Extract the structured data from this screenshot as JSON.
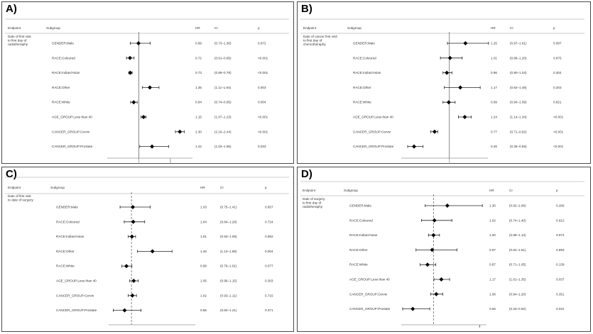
{
  "chart_data": [
    {
      "type": "forest",
      "panel_label": "A)",
      "headers": {
        "endpoint": "Endpoint",
        "subgroup": "Subgroup",
        "hr": "HR",
        "ci": "CI",
        "p": "p"
      },
      "endpoint_lines": [
        "Date of first visit",
        "to first day of",
        "radiotheraphy"
      ],
      "xlim": [
        0,
        2.7
      ],
      "ref_line": 1,
      "ticks": [
        "1",
        "2"
      ],
      "rows": [
        {
          "subgroup": "GENDER:Male",
          "hr": 0.99,
          "lo": 0.73,
          "hi": 1.36,
          "hr_text": "0.99",
          "ci_text": "(0.73–1.36)",
          "p_text": "0.972"
        },
        {
          "subgroup": "RACE:Coloured",
          "hr": 0.72,
          "lo": 0.61,
          "hi": 0.85,
          "hr_text": "0.72",
          "ci_text": "(0.61–0.85)",
          "p_text": "<0.001"
        },
        {
          "subgroup": "RACE:Indian/Asian",
          "hr": 0.73,
          "lo": 0.68,
          "hi": 0.79,
          "hr_text": "0.73",
          "ci_text": "(0.68–0.79)",
          "p_text": "<0.001"
        },
        {
          "subgroup": "RACE:Other",
          "hr": 1.35,
          "lo": 1.11,
          "hi": 1.64,
          "hr_text": "1.35",
          "ci_text": "(1.11–1.64)",
          "p_text": "0.003"
        },
        {
          "subgroup": "RACE:White",
          "hr": 0.84,
          "lo": 0.74,
          "hi": 0.95,
          "hr_text": "0.84",
          "ci_text": "(0.74–0.95)",
          "p_text": "0.004"
        },
        {
          "subgroup": "AGE_GROUP:Less than 40",
          "hr": 1.15,
          "lo": 1.07,
          "hi": 1.23,
          "hr_text": "1.15",
          "ci_text": "(1.07–1.23)",
          "p_text": "<0.001"
        },
        {
          "subgroup": "CANCER_GROUP:Cervix",
          "hr": 2.3,
          "lo": 2.16,
          "hi": 2.44,
          "hr_text": "2.30",
          "ci_text": "(2.16–2.44)",
          "p_text": "<0.001"
        },
        {
          "subgroup": "CANCER_GROUP:Prostate",
          "hr": 1.42,
          "lo": 1.03,
          "hi": 1.95,
          "hr_text": "1.42",
          "ci_text": "(1.03–1.95)",
          "p_text": "0.033"
        }
      ]
    },
    {
      "type": "forest",
      "panel_label": "B)",
      "headers": {
        "endpoint": "Endpoint",
        "subgroup": "Subgroup",
        "hr": "HR",
        "ci": "CI",
        "p": "p"
      },
      "endpoint_lines": [
        "Date of cancer first visit",
        "to first day of",
        "chemotheraphy"
      ],
      "xlim": [
        0.25,
        1.6
      ],
      "ref_line": 1,
      "ticks": [
        "1"
      ],
      "rows": [
        {
          "subgroup": "GENDER:Male",
          "hr": 1.25,
          "lo": 0.97,
          "hi": 1.61,
          "hr_text": "1.25",
          "ci_text": "(0.97–1.61)",
          "p_text": "0.087"
        },
        {
          "subgroup": "RACE:Coloured",
          "hr": 1.01,
          "lo": 0.86,
          "hi": 1.2,
          "hr_text": "1.01",
          "ci_text": "(0.86–1.20)",
          "p_text": "0.875"
        },
        {
          "subgroup": "RACE:Indian/Asian",
          "hr": 0.96,
          "lo": 0.9,
          "hi": 1.04,
          "hr_text": "0.96",
          "ci_text": "(0.90–1.04)",
          "p_text": "0.304"
        },
        {
          "subgroup": "RACE:Other",
          "hr": 1.17,
          "lo": 0.92,
          "hi": 1.48,
          "hr_text": "1.17",
          "ci_text": "(0.92–1.48)",
          "p_text": "0.203"
        },
        {
          "subgroup": "RACE:White",
          "hr": 0.99,
          "lo": 0.9,
          "hi": 1.09,
          "hr_text": "0.99",
          "ci_text": "(0.90–1.09)",
          "p_text": "0.821"
        },
        {
          "subgroup": "AGE_GROUP:Less than 40",
          "hr": 1.24,
          "lo": 1.14,
          "hi": 1.34,
          "hr_text": "1.24",
          "ci_text": "(1.14–1.34)",
          "p_text": "<0.001"
        },
        {
          "subgroup": "CANCER_GROUP:Cervix",
          "hr": 0.77,
          "lo": 0.71,
          "hi": 0.82,
          "hr_text": "0.77",
          "ci_text": "(0.71–0.82)",
          "p_text": "<0.001"
        },
        {
          "subgroup": "CANCER_GROUP:Prostate",
          "hr": 0.45,
          "lo": 0.35,
          "hi": 0.59,
          "hr_text": "0.45",
          "ci_text": "(0.35–0.59)",
          "p_text": "<0.001"
        }
      ]
    },
    {
      "type": "forest",
      "panel_label": "C)",
      "headers": {
        "endpoint": "Endpoint",
        "subgroup": "Subgroup",
        "hr": "HR",
        "ci": "CI",
        "p": "p"
      },
      "endpoint_lines": [
        "Date of first visit",
        "to date of surgery"
      ],
      "xlim": [
        0.5,
        2.4
      ],
      "ref_line": 1,
      "ticks": [],
      "rows": [
        {
          "subgroup": "GENDER:Male",
          "hr": 1.03,
          "lo": 0.75,
          "hi": 1.41,
          "hr_text": "1.03",
          "ci_text": "(0.75–1.41)",
          "p_text": "0.857"
        },
        {
          "subgroup": "RACE:Coloured",
          "hr": 1.04,
          "lo": 0.84,
          "hi": 1.29,
          "hr_text": "1.04",
          "ci_text": "(0.84–1.29)",
          "p_text": "0.724"
        },
        {
          "subgroup": "RACE:Indian/Asian",
          "hr": 1.01,
          "lo": 0.93,
          "hi": 1.09,
          "hr_text": "1.01",
          "ci_text": "(0.93–1.09)",
          "p_text": "0.892"
        },
        {
          "subgroup": "RACE:Other",
          "hr": 1.46,
          "lo": 1.13,
          "hi": 1.89,
          "hr_text": "1.46",
          "ci_text": "(1.13–1.89)",
          "p_text": "0.004"
        },
        {
          "subgroup": "RACE:White",
          "hr": 0.89,
          "lo": 0.79,
          "hi": 1.01,
          "hr_text": "0.89",
          "ci_text": "(0.79–1.01)",
          "p_text": "0.077"
        },
        {
          "subgroup": "AGE_GROUP:Less than 40",
          "hr": 1.05,
          "lo": 0.96,
          "hi": 1.15,
          "hr_text": "1.05",
          "ci_text": "(0.96–1.15)",
          "p_text": "0.303"
        },
        {
          "subgroup": "CANCER_GROUP:Cervix",
          "hr": 1.02,
          "lo": 0.93,
          "hi": 1.11,
          "hr_text": "1.02",
          "ci_text": "(0.93–1.11)",
          "p_text": "0.715"
        },
        {
          "subgroup": "CANCER_GROUP:Prostate",
          "hr": 0.85,
          "lo": 0.6,
          "hi": 1.21,
          "hr_text": "0.85",
          "ci_text": "(0.60–1.21)",
          "p_text": "0.371"
        }
      ]
    },
    {
      "type": "forest",
      "panel_label": "D)",
      "headers": {
        "endpoint": "Endpoint",
        "subgroup": "Subgroup",
        "hr": "HR",
        "ci": "CI",
        "p": "p"
      },
      "endpoint_lines": [
        "Date of surgery",
        "to first day of",
        "radiotheraphy"
      ],
      "xlim": [
        0.3,
        2.15
      ],
      "ref_line": 1,
      "ticks": [
        "2"
      ],
      "rows": [
        {
          "subgroup": "GENDER:Male",
          "hr": 1.3,
          "lo": 0.82,
          "hi": 2.06,
          "hr_text": "1.30",
          "ci_text": "(0.82–2.06)",
          "p_text": "0.266"
        },
        {
          "subgroup": "RACE:Coloured",
          "hr": 1.02,
          "lo": 0.74,
          "hi": 1.4,
          "hr_text": "1.02",
          "ci_text": "(0.74–1.40)",
          "p_text": "0.912"
        },
        {
          "subgroup": "RACE:Indian/Asian",
          "hr": 1.0,
          "lo": 0.89,
          "hi": 1.13,
          "hr_text": "1.00",
          "ci_text": "(0.89–1.13)",
          "p_text": "0.974"
        },
        {
          "subgroup": "RACE:Other",
          "hr": 0.97,
          "lo": 0.62,
          "hi": 1.51,
          "hr_text": "0.97",
          "ci_text": "(0.62–1.51)",
          "p_text": "0.893"
        },
        {
          "subgroup": "RACE:White",
          "hr": 0.87,
          "lo": 0.71,
          "hi": 1.05,
          "hr_text": "0.87",
          "ci_text": "(0.71–1.05)",
          "p_text": "0.139"
        },
        {
          "subgroup": "AGE_GROUP:Less than 40",
          "hr": 1.17,
          "lo": 1.01,
          "hi": 1.35,
          "hr_text": "1.17",
          "ci_text": "(1.01–1.35)",
          "p_text": "0.037"
        },
        {
          "subgroup": "CANCER_GROUP:Cervix",
          "hr": 1.06,
          "lo": 0.94,
          "hi": 1.2,
          "hr_text": "1.06",
          "ci_text": "(0.94–1.20)",
          "p_text": "0.351"
        },
        {
          "subgroup": "CANCER_GROUP:Prostate",
          "hr": 0.55,
          "lo": 0.33,
          "hi": 0.92,
          "hr_text": "0.55",
          "ci_text": "(0.33–0.92)",
          "p_text": "0.031"
        }
      ]
    }
  ]
}
